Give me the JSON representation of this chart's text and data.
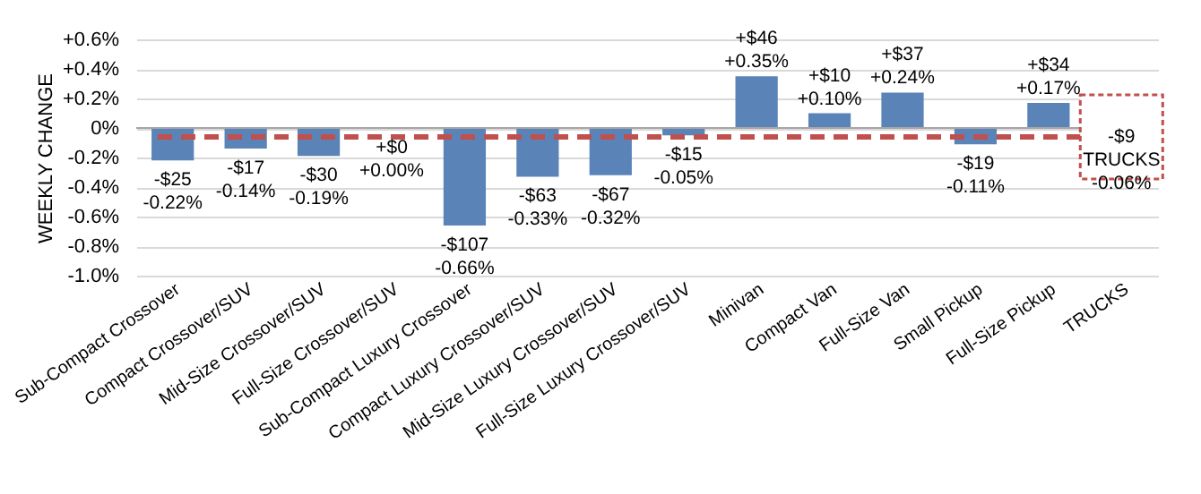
{
  "chart_data": {
    "type": "bar",
    "ylabel": "WEEKLY CHANGE",
    "categories": [
      "Sub-Compact Crossover",
      "Compact Crossover/SUV",
      "Mid-Size Crossover/SUV",
      "Full-Size Crossover/SUV",
      "Sub-Compact Luxury Crossover",
      "Compact Luxury Crossover/SUV",
      "Mid-Size Luxury Crossover/SUV",
      "Full-Size Luxury Crossover/SUV",
      "Minivan",
      "Compact Van",
      "Full-Size Van",
      "Small Pickup",
      "Full-Size Pickup",
      "TRUCKS"
    ],
    "values": [
      -0.22,
      -0.14,
      -0.19,
      0.0,
      -0.66,
      -0.33,
      -0.32,
      -0.05,
      0.35,
      0.1,
      0.24,
      -0.11,
      0.17,
      null
    ],
    "value_labels": [
      "-$25\n-0.22%",
      "-$17\n-0.14%",
      "-$30\n-0.19%",
      "+$0\n+0.00%",
      "-$107\n-0.66%",
      "-$63\n-0.33%",
      "-$67\n-0.32%",
      "-$15\n-0.05%",
      "+$46\n+0.35%",
      "+$10\n+0.10%",
      "+$37\n+0.24%",
      "-$19\n-0.11%",
      "+$34\n+0.17%",
      null
    ],
    "color": "#5a83b8",
    "ylim": [
      -1.0,
      0.6
    ],
    "yticks": [
      {
        "value": 0.6,
        "label": "+0.6%"
      },
      {
        "value": 0.4,
        "label": "+0.4%"
      },
      {
        "value": 0.2,
        "label": "+0.2%"
      },
      {
        "value": 0,
        "label": "0%"
      },
      {
        "value": -0.2,
        "label": "-0.2%"
      },
      {
        "value": -0.4,
        "label": "-0.4%"
      },
      {
        "value": -0.6,
        "label": "-0.6%"
      },
      {
        "value": -0.8,
        "label": "-0.8%"
      },
      {
        "value": -1.0,
        "label": "-1.0%"
      }
    ],
    "grid": "y",
    "ref_lines": [
      {
        "axis": "y",
        "value": -0.06,
        "label": "-$9\nTRUCKS\n-0.06%",
        "color": "#c0504d",
        "line_style": "dashed"
      }
    ]
  }
}
